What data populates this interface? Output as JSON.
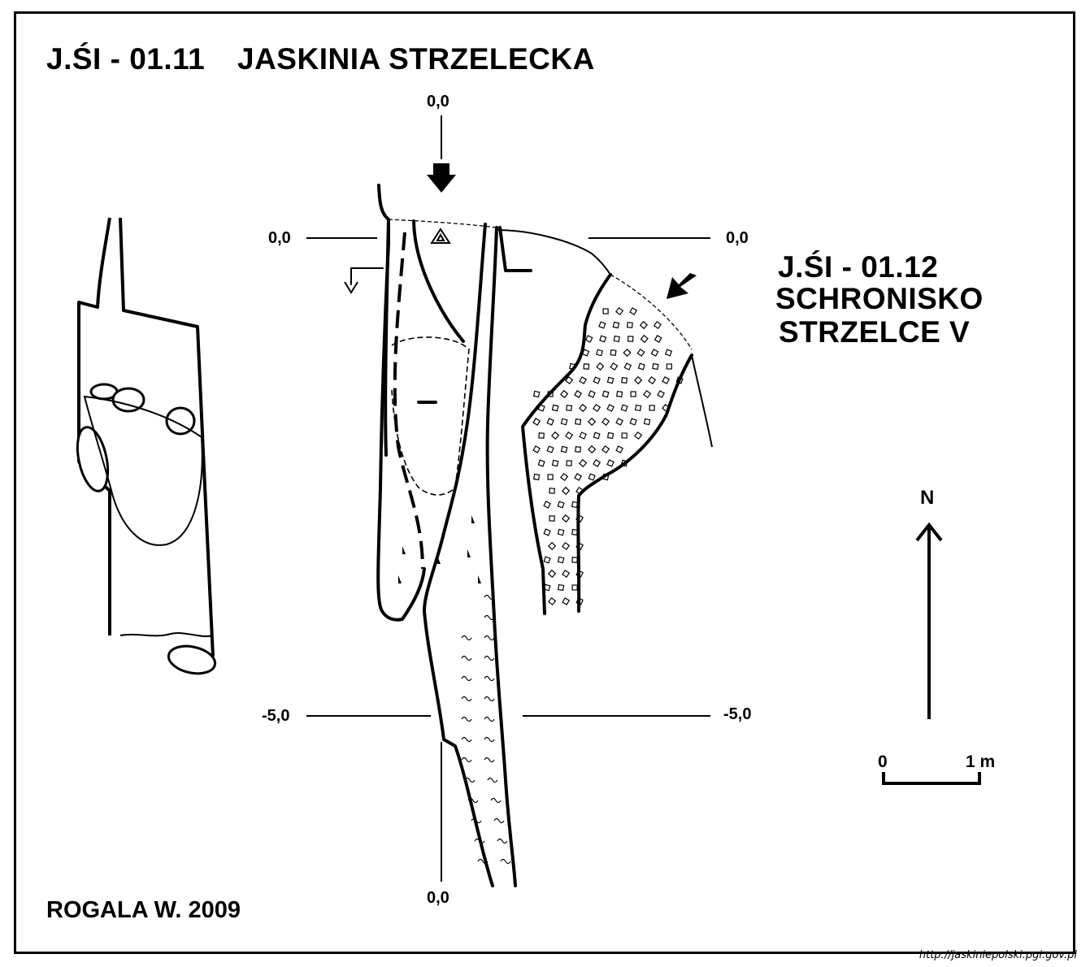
{
  "header": {
    "code_main": "J.ŚI - 01.11",
    "name_main": "JASKINIA STRZELECKA"
  },
  "secondary_cave": {
    "code": "J.ŚI - 01.12",
    "name_line1": "SCHRONISKO",
    "name_line2": "STRZELCE V"
  },
  "depth_labels": {
    "top": "0,0",
    "left_zero": "0,0",
    "right_zero": "0,0",
    "left_minus5": "-5,0",
    "right_minus5": "-5,0",
    "bottom": "0,0"
  },
  "north_label": "N",
  "scale": {
    "start": "0",
    "end": "1 m"
  },
  "author": "ROGALA W. 2009",
  "source_url": "http://jaskiniepolski.pgi.gov.pl",
  "icons": [
    "entrance-arrow-icon",
    "survey-point-triangle-icon",
    "north-arrow-icon",
    "scale-bar-icon"
  ],
  "colors": {
    "ink": "#000000",
    "paper": "#ffffff"
  }
}
